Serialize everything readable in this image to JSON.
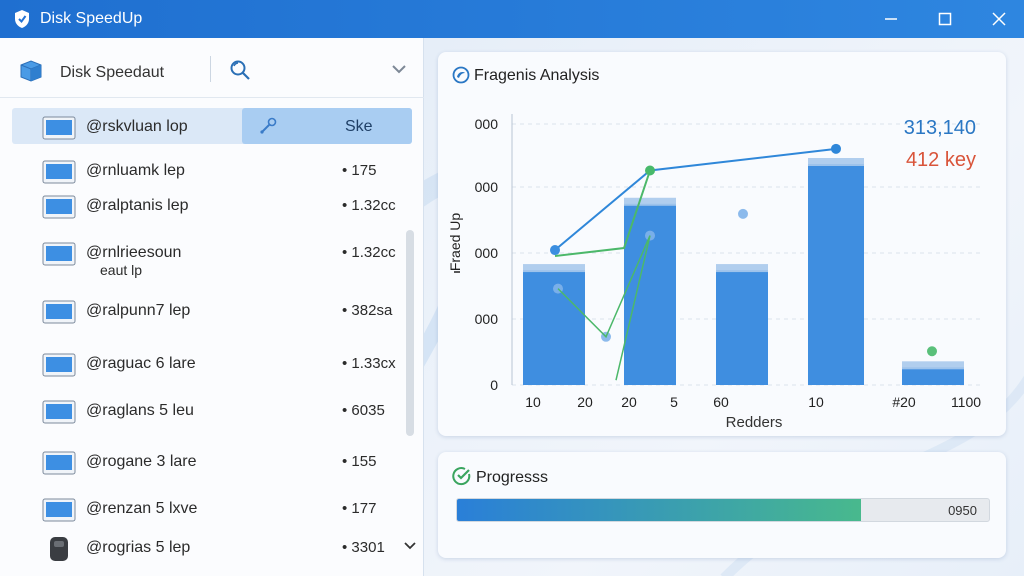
{
  "app": {
    "title": "Disk SpeedUp"
  },
  "titlebar": {
    "min_glyph": "—",
    "max_glyph": "☐",
    "close_glyph": "✕"
  },
  "left_panel": {
    "title": "Disk Speedaut",
    "selected": {
      "name": "@rskvluan lop",
      "label": "Ske"
    },
    "items": [
      {
        "name": "@rnluamk lep",
        "size": "• 175"
      },
      {
        "name": "@ralptanis lep",
        "size": "• 1.32cc"
      },
      {
        "name": "@rnlrieesoun",
        "sub": "eaut lp",
        "size": "• 1.32cc"
      },
      {
        "name": "@ralpunn7 lep",
        "size": "• 382sa"
      },
      {
        "name": "@raguac 6 lare",
        "size": "• 1.33cx"
      },
      {
        "name": "@raglans 5 leu",
        "size": "• 6035"
      },
      {
        "name": "@rogane 3 lare",
        "size": "• 155"
      },
      {
        "name": "@renzan 5 lxve",
        "size": "• 177"
      },
      {
        "name": "@rogrias 5 lep",
        "size": "• 3301"
      }
    ]
  },
  "chart_card": {
    "title": "Fragenis Analysis",
    "icon": "fragment-analysis-icon"
  },
  "chart_data": {
    "type": "bar",
    "ylabel": "Fraed Up",
    "xlabel": "Redders",
    "y_tick_labels": [
      "000",
      "000",
      "000",
      "000",
      "0"
    ],
    "x_tick_labels": [
      "10",
      "20",
      "20",
      "5",
      "60",
      "10",
      "#20",
      "1100"
    ],
    "values": [
      0.52,
      0.82,
      0.52,
      1.0,
      0.08
    ],
    "line_points": [
      0.56,
      0.89,
      0.98
    ],
    "scatter_points": [
      0.4,
      0.2,
      0.62,
      0.71,
      0.14
    ],
    "annotations": [
      {
        "text": "313,140",
        "color": "#2a77c4"
      },
      {
        "text": "412 key",
        "color": "#d9543a"
      }
    ],
    "bar_color": "#3f8ee0",
    "line_color": "#3da85c",
    "grid": true
  },
  "progress_card": {
    "title": "Progresss",
    "icon": "progress-check-icon",
    "value_label": "0950",
    "fraction": 0.76
  }
}
